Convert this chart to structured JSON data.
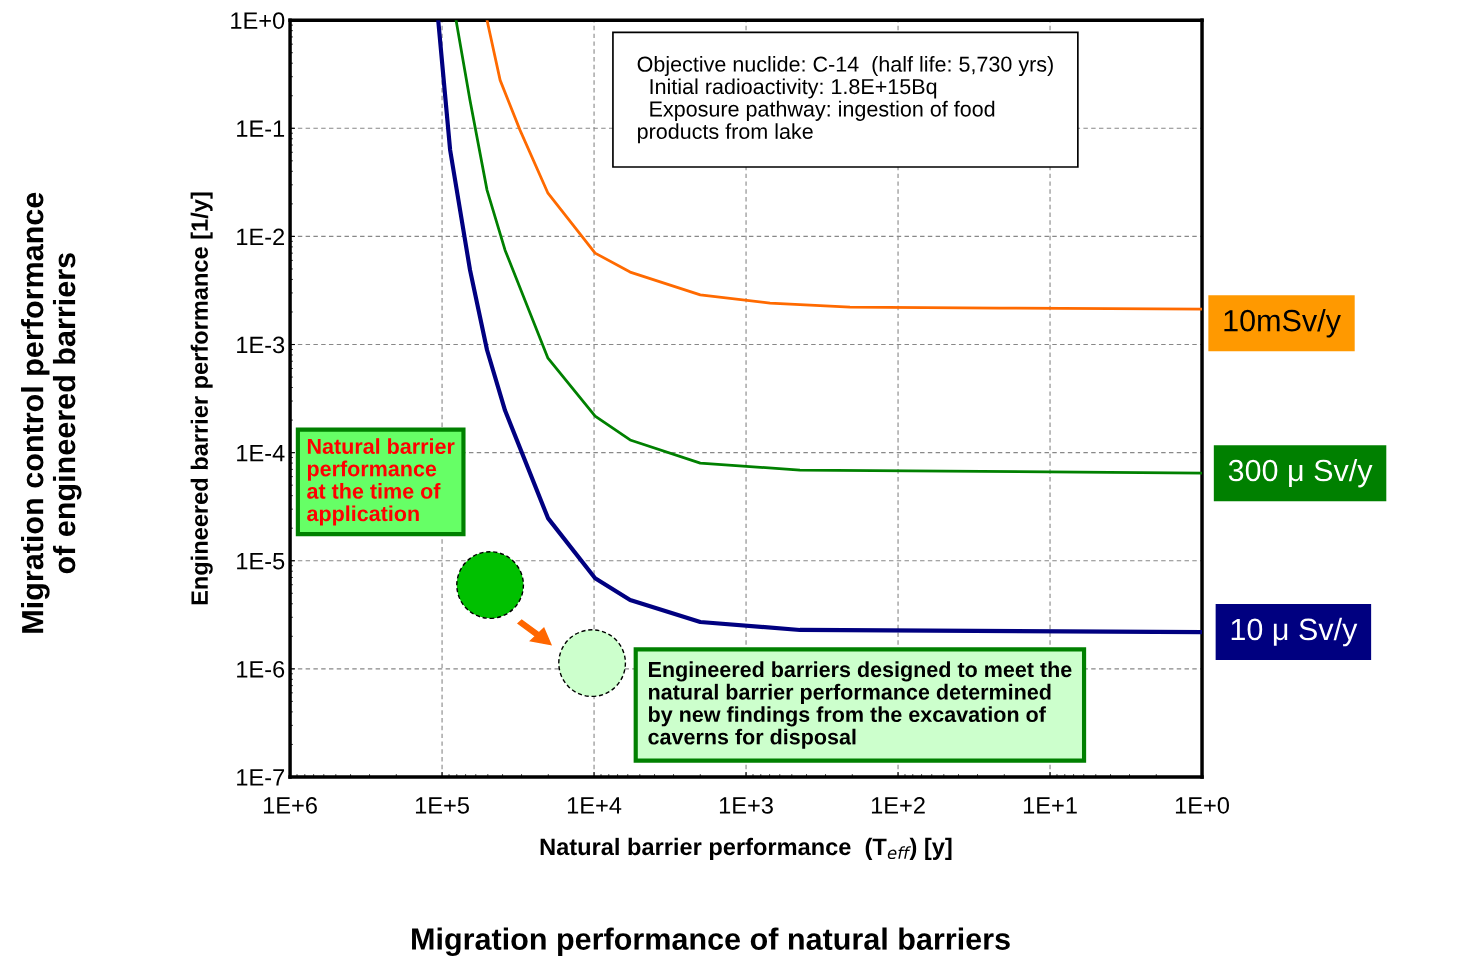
{
  "chart_data": {
    "type": "line",
    "xlabel": "Natural barrier performance  (T$_{eff}$) [y]",
    "ylabel": "Engineered barrier performance [1/y]",
    "log": "xy",
    "xlim": [
      1000000,
      1
    ],
    "ylim": [
      1e-07,
      1
    ],
    "xticks": [
      {
        "value": 1000000,
        "label": "1E+6"
      },
      {
        "value": 100000,
        "label": "1E+5"
      },
      {
        "value": 10000,
        "label": "1E+4"
      },
      {
        "value": 1000,
        "label": "1E+3"
      },
      {
        "value": 100,
        "label": "1E+2"
      },
      {
        "value": 10,
        "label": "1E+1"
      },
      {
        "value": 1,
        "label": "1E+0"
      }
    ],
    "yticks": [
      {
        "value": 1,
        "label": "1E+0"
      },
      {
        "value": 0.1,
        "label": "1E-1"
      },
      {
        "value": 0.01,
        "label": "1E-2"
      },
      {
        "value": 0.001,
        "label": "1E-3"
      },
      {
        "value": 0.0001,
        "label": "1E-4"
      },
      {
        "value": 1e-05,
        "label": "1E-5"
      },
      {
        "value": 1e-06,
        "label": "1E-6"
      },
      {
        "value": 1e-07,
        "label": "1E-7"
      }
    ],
    "grid": true,
    "marker": "none",
    "line_style": "solid",
    "series": [
      {
        "name": "10mSv/y",
        "color": "#ff6a00",
        "x": [
          50600,
          41500,
          30700,
          20100,
          9840,
          5790,
          2000,
          695,
          207,
          21.4,
          1
        ],
        "values": [
          1,
          0.279,
          0.0962,
          0.0251,
          0.007,
          0.00468,
          0.00288,
          0.00242,
          0.00222,
          0.00217,
          0.00213
        ]
      },
      {
        "name": "300 μ Sv/y",
        "color": "#008000",
        "x": [
          80900,
          65500,
          50600,
          38500,
          20100,
          9840,
          5790,
          2000,
          442,
          1
        ],
        "values": [
          1,
          0.182,
          0.0268,
          0.00746,
          0.000748,
          0.000218,
          0.000131,
          8e-05,
          6.9e-05,
          6.46e-05
        ]
      },
      {
        "name": "10 μ Sv/y",
        "color": "#000080",
        "x": [
          106000,
          88500,
          65500,
          50600,
          38500,
          20100,
          9840,
          5790,
          2000,
          442,
          1
        ],
        "values": [
          1,
          0.063,
          0.0049,
          0.00089,
          0.000245,
          2.48e-05,
          6.9e-06,
          4.34e-06,
          2.71e-06,
          2.29e-06,
          2.19e-06
        ]
      },
      {
        "type": "scatter",
        "marker": "circle",
        "x": [
          48300,
          10300
        ],
        "values": [
          5.96e-06,
          1.13e-06
        ],
        "colors": [
          "#00c000",
          "#ccffcc"
        ]
      }
    ],
    "annotations": [
      "Objective nuclide: C-14  (half life: 5,730 yrs)\n  Initial radioactivity: 1.8E+15Bq\n  Exposure pathway: ingestion of food\nproducts from lake",
      "Natural barrier\nperformance\nat the time of\napplication",
      "Engineered barriers designed to meet the\nnatural barrier performance determined\nby new findings from the excavation of\ncaverns for disposal",
      "Migration control performance\nof engineered barriers",
      "Migration performance of natural barriers"
    ]
  }
}
